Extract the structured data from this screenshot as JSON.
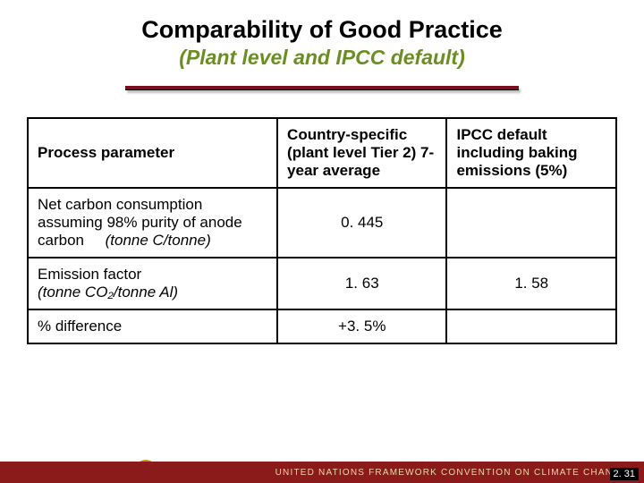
{
  "title": "Comparability of Good Practice",
  "subtitle": "(Plant level and IPCC default)",
  "colors": {
    "accent_rule": "#7a0e1e",
    "subtitle_color": "#6b8e23",
    "footer_bg": "#8b1a1a",
    "footer_text": "#e8d8a8"
  },
  "table": {
    "columns": [
      "Process parameter",
      "Country-specific (plant level Tier 2) 7-year average",
      "IPCC default including baking emissions (5%)"
    ],
    "rows": [
      {
        "param_main": "Net carbon consumption assuming 98% purity of anode carbon",
        "param_unit": "(tonne C/tonne)",
        "country": "0. 445",
        "ipcc": ""
      },
      {
        "param_main": "Emission factor",
        "param_unit": "(tonne CO₂/tonne Al)",
        "country": "1. 63",
        "ipcc": "1. 58"
      },
      {
        "param_main": "% difference",
        "param_unit": "",
        "country": "+3. 5%",
        "ipcc": ""
      }
    ]
  },
  "footer": {
    "org_text": "UNITED NATIONS FRAMEWORK CONVENTION ON CLIMATE CHANGE",
    "slide_number": "2. 31",
    "logo1": "UNFCCC",
    "logo2": "un-emblem"
  }
}
